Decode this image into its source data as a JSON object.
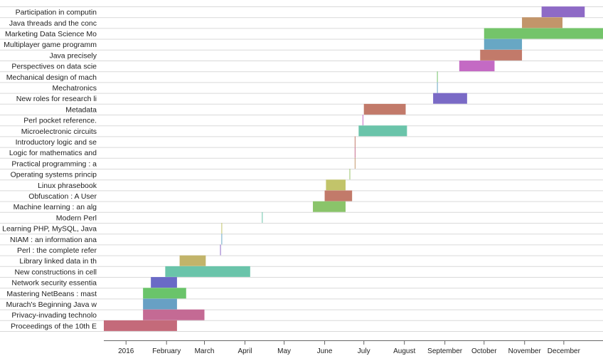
{
  "chart_data": {
    "type": "gantt",
    "title": "",
    "xlabel": "",
    "ylabel": "",
    "x_axis": {
      "type": "date",
      "min": "2015-12-15",
      "max": "2016-12-31",
      "ticks": [
        {
          "date": "2016-01-01",
          "label": "2016"
        },
        {
          "date": "2016-02-01",
          "label": "February"
        },
        {
          "date": "2016-03-01",
          "label": "March"
        },
        {
          "date": "2016-04-01",
          "label": "April"
        },
        {
          "date": "2016-05-01",
          "label": "May"
        },
        {
          "date": "2016-06-01",
          "label": "June"
        },
        {
          "date": "2016-07-01",
          "label": "July"
        },
        {
          "date": "2016-08-01",
          "label": "August"
        },
        {
          "date": "2016-09-01",
          "label": "September"
        },
        {
          "date": "2016-10-01",
          "label": "October"
        },
        {
          "date": "2016-11-01",
          "label": "November"
        },
        {
          "date": "2016-12-01",
          "label": "December"
        }
      ]
    },
    "grid": true,
    "legend": "none",
    "tasks": [
      {
        "label": "Participation in computin",
        "start": "2016-11-14",
        "end": "2016-12-17",
        "color": "#8e6ac6"
      },
      {
        "label": "Java threads and the conc",
        "start": "2016-10-30",
        "end": "2016-11-30",
        "color": "#c2956a"
      },
      {
        "label": "Marketing Data Science Mo",
        "start": "2016-10-01",
        "end": "2016-12-31",
        "color": "#74c46a"
      },
      {
        "label": "Multiplayer game programm",
        "start": "2016-10-01",
        "end": "2016-10-30",
        "color": "#68a7c4"
      },
      {
        "label": "Java precisely",
        "start": "2016-09-28",
        "end": "2016-10-30",
        "color": "#c27a6a"
      },
      {
        "label": "Perspectives on data scie",
        "start": "2016-09-12",
        "end": "2016-10-09",
        "color": "#c46ac4"
      },
      {
        "label": "Mechanical design of mach",
        "start": "2016-08-26",
        "end": "2016-08-26",
        "color": "#74c46a"
      },
      {
        "label": "Mechatronics",
        "start": "2016-08-26",
        "end": "2016-08-26",
        "color": "#68a7c4"
      },
      {
        "label": "New roles for research li",
        "start": "2016-08-23",
        "end": "2016-09-18",
        "color": "#7a6ac6"
      },
      {
        "label": "Metadata",
        "start": "2016-07-01",
        "end": "2016-08-02",
        "color": "#c27a6a"
      },
      {
        "label": "Perl pocket reference.",
        "start": "2016-06-30",
        "end": "2016-06-30",
        "color": "#c46ac4"
      },
      {
        "label": "Microelectronic circuits",
        "start": "2016-06-27",
        "end": "2016-08-03",
        "color": "#6ac4aa"
      },
      {
        "label": "Introductory logic and se",
        "start": "2016-06-24",
        "end": "2016-06-24",
        "color": "#c27a6a"
      },
      {
        "label": "Logic for mathematics and",
        "start": "2016-06-24",
        "end": "2016-06-24",
        "color": "#c46a8a"
      },
      {
        "label": "Practical programming : a",
        "start": "2016-06-24",
        "end": "2016-06-24",
        "color": "#c2956a"
      },
      {
        "label": "Operating systems princip",
        "start": "2016-06-20",
        "end": "2016-06-20",
        "color": "#9ac46a"
      },
      {
        "label": "Linux phrasebook",
        "start": "2016-06-02",
        "end": "2016-06-17",
        "color": "#c2c46a"
      },
      {
        "label": "Obfuscation : A User",
        "start": "2016-06-01",
        "end": "2016-06-22",
        "color": "#c27a6a"
      },
      {
        "label": "Machine learning : an alg",
        "start": "2016-05-23",
        "end": "2016-06-17",
        "color": "#8ac46a"
      },
      {
        "label": "Modern Perl",
        "start": "2016-04-14",
        "end": "2016-04-14",
        "color": "#6ac4aa"
      },
      {
        "label": "Learning PHP, MySQL, Java",
        "start": "2016-03-14",
        "end": "2016-03-14",
        "color": "#c2c46a"
      },
      {
        "label": "NIAM : an information ana",
        "start": "2016-03-14",
        "end": "2016-03-14",
        "color": "#68a7c4"
      },
      {
        "label": "Perl : the complete refer",
        "start": "2016-03-13",
        "end": "2016-03-13",
        "color": "#8e6ac6"
      },
      {
        "label": "Library linked data in th",
        "start": "2016-02-11",
        "end": "2016-03-02",
        "color": "#c2b46a"
      },
      {
        "label": "New constructions in cell",
        "start": "2016-01-31",
        "end": "2016-04-05",
        "color": "#6ac4aa"
      },
      {
        "label": "Network security essentia",
        "start": "2016-01-20",
        "end": "2016-02-09",
        "color": "#6a6ac6"
      },
      {
        "label": "Mastering NetBeans : mast",
        "start": "2016-01-14",
        "end": "2016-02-16",
        "color": "#6ac46a"
      },
      {
        "label": "Murach's Beginning Java w",
        "start": "2016-01-14",
        "end": "2016-02-09",
        "color": "#68a0c4"
      },
      {
        "label": "Privacy-invading technolo",
        "start": "2016-01-14",
        "end": "2016-03-01",
        "color": "#c46a94"
      },
      {
        "label": "Proceedings of the 10th E",
        "start": "2015-12-15",
        "end": "2016-02-09",
        "color": "#c46a7a"
      }
    ]
  }
}
